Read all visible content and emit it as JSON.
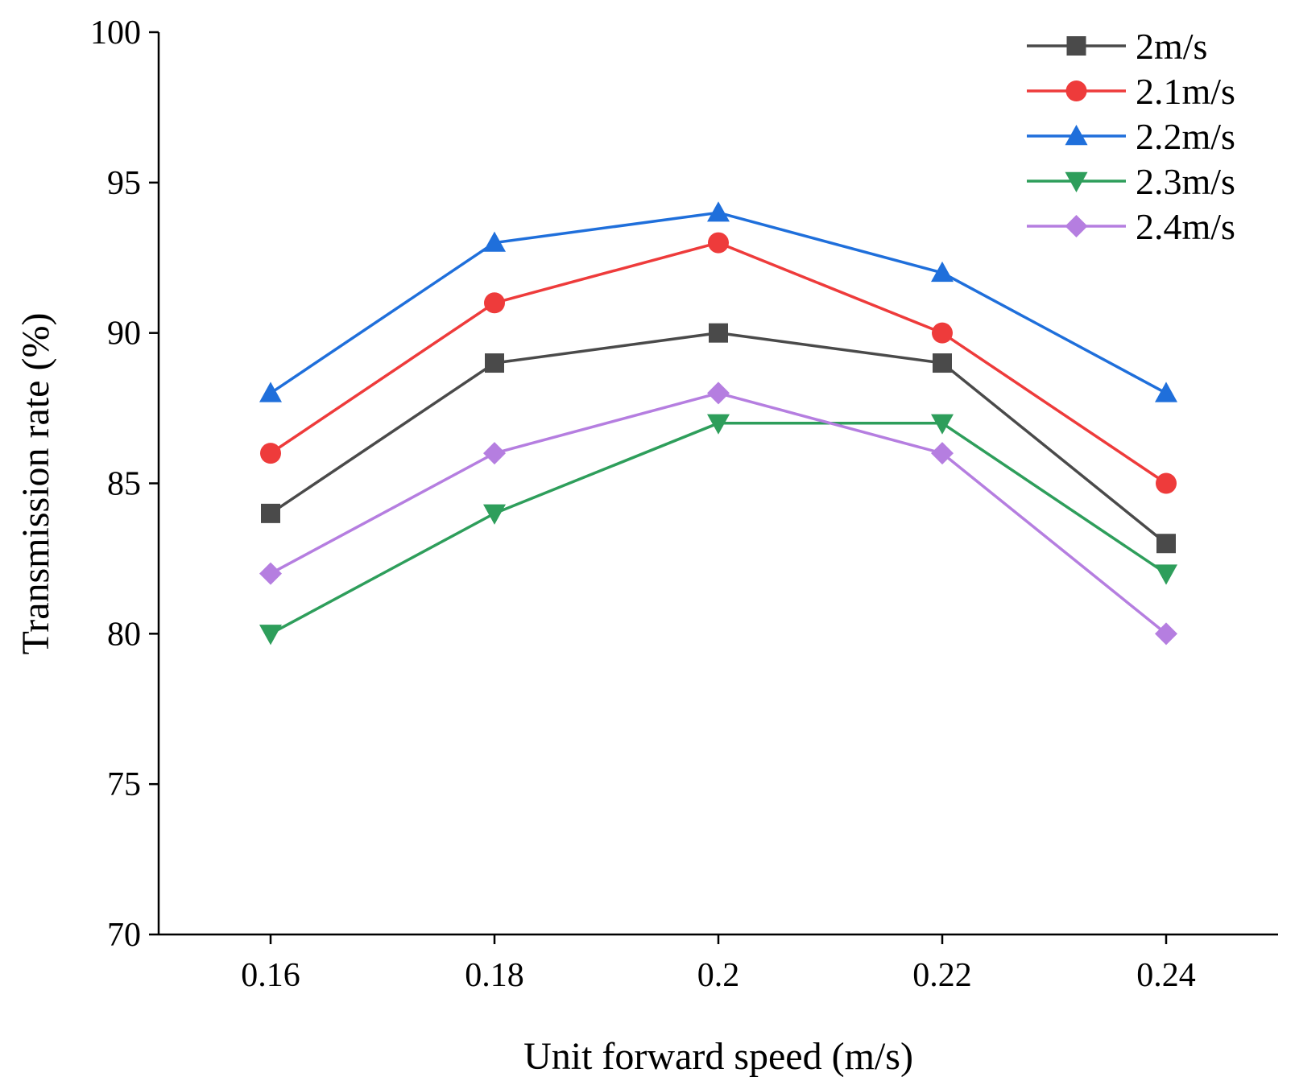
{
  "chart_data": {
    "type": "line",
    "title": "",
    "xlabel": "Unit forward speed (m/s)",
    "ylabel": "Transmission rate (%)",
    "x": [
      0.16,
      0.18,
      0.2,
      0.22,
      0.24
    ],
    "x_tick_labels": [
      "0.16",
      "0.18",
      "0.2",
      "0.22",
      "0.24"
    ],
    "xlim": [
      0.15,
      0.25
    ],
    "ylim": [
      70,
      100
    ],
    "y_ticks": [
      70,
      75,
      80,
      85,
      90,
      95,
      100
    ],
    "y_tick_labels": [
      "70",
      "75",
      "80",
      "85",
      "90",
      "95",
      "100"
    ],
    "grid": false,
    "legend_position": "top-right",
    "series": [
      {
        "name": "2m/s",
        "color": "#4a4a4a",
        "marker": "square",
        "values": [
          84,
          89,
          90,
          89,
          83
        ]
      },
      {
        "name": "2.1m/s",
        "color": "#ee3b3b",
        "marker": "circle",
        "values": [
          86,
          91,
          93,
          90,
          85
        ]
      },
      {
        "name": "2.2m/s",
        "color": "#1f6fdb",
        "marker": "triangle-up",
        "values": [
          88,
          93,
          94,
          92,
          88
        ]
      },
      {
        "name": "2.3m/s",
        "color": "#2e9e5b",
        "marker": "triangle-down",
        "values": [
          80,
          84,
          87,
          87,
          82
        ]
      },
      {
        "name": "2.4m/s",
        "color": "#b57ee0",
        "marker": "diamond",
        "values": [
          82,
          86,
          88,
          86,
          80
        ]
      }
    ]
  }
}
